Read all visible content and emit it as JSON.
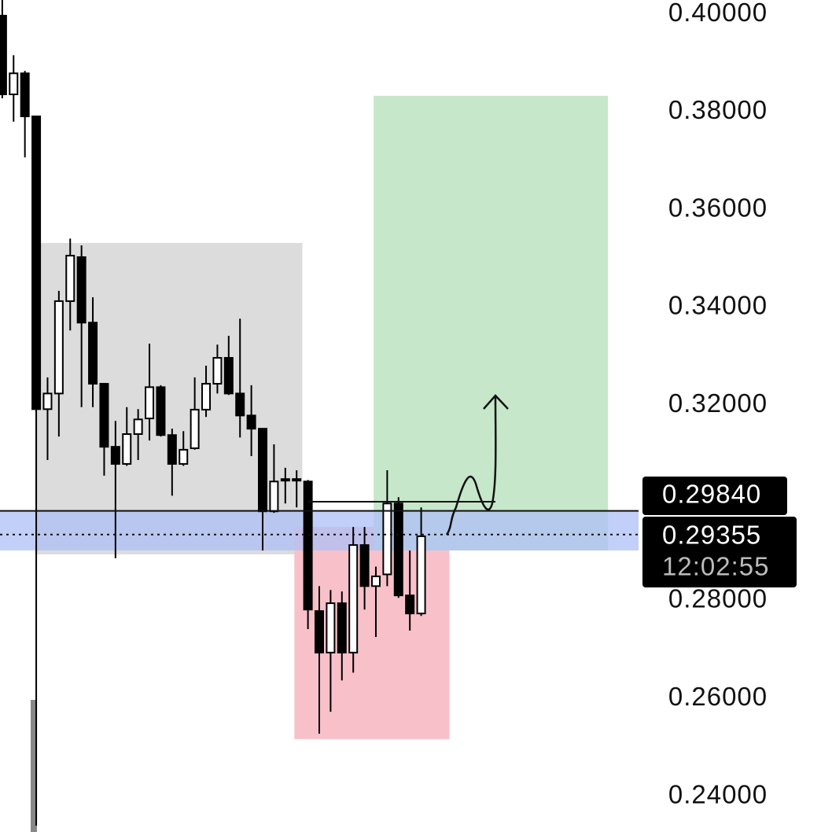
{
  "chart_data": {
    "type": "candlestick",
    "open": [
      0.3997,
      0.3836,
      0.3879,
      0.3791,
      0.3192,
      0.3224,
      0.3413,
      0.3503,
      0.3369,
      0.3244,
      0.3115,
      0.308,
      0.3141,
      0.3173,
      0.3237,
      0.3139,
      0.308,
      0.3112,
      0.3191,
      0.3244,
      0.3297,
      0.3224,
      0.3179,
      0.3152,
      0.2983,
      0.3046,
      0.3046,
      0.3044,
      0.2779,
      0.2694,
      0.2795,
      0.2694,
      0.2914,
      0.283,
      0.2854,
      0.2999,
      0.2811,
      0.2774
    ],
    "high": [
      0.4029,
      0.3916,
      0.3884,
      0.3791,
      0.3257,
      0.3434,
      0.3541,
      0.3527,
      0.3421,
      0.3244,
      0.3168,
      0.3196,
      0.3192,
      0.3326,
      0.3241,
      0.3152,
      0.3147,
      0.3257,
      0.3281,
      0.3324,
      0.3342,
      0.3377,
      0.3241,
      0.3152,
      0.312,
      0.3072,
      0.3067,
      0.3047,
      0.283,
      0.2822,
      0.2819,
      0.2951,
      0.2951,
      0.287,
      0.3067,
      0.3012,
      0.2903,
      0.2991
    ],
    "low": [
      0.3828,
      0.378,
      0.3707,
      0.234,
      0.3088,
      0.3136,
      0.3353,
      0.3196,
      0.3196,
      0.3056,
      0.2887,
      0.3076,
      0.3088,
      0.3128,
      0.3136,
      0.3015,
      0.3076,
      0.3109,
      0.3176,
      0.3224,
      0.3221,
      0.3134,
      0.3096,
      0.2903,
      0.298,
      0.2999,
      0.2991,
      0.2742,
      0.2528,
      0.2573,
      0.2637,
      0.2653,
      0.2782,
      0.2726,
      0.283,
      0.2806,
      0.2739,
      0.2769
    ],
    "close": [
      0.3836,
      0.3879,
      0.3791,
      0.3192,
      0.3224,
      0.3413,
      0.3506,
      0.3369,
      0.3244,
      0.3115,
      0.308,
      0.3141,
      0.3171,
      0.3237,
      0.3139,
      0.308,
      0.3109,
      0.3191,
      0.3244,
      0.3297,
      0.3224,
      0.3179,
      0.3152,
      0.2983,
      0.3044,
      0.3049,
      0.3049,
      0.2782,
      0.2694,
      0.2795,
      0.2694,
      0.2914,
      0.283,
      0.285,
      0.2999,
      0.2811,
      0.2774,
      0.2932
    ],
    "up_color": "#ffffff",
    "down_color": "#000000",
    "xlim": [
      -0.2,
      56.2
    ],
    "ylim": [
      0.2327,
      0.4029
    ],
    "yticks": [
      {
        "value": 0.24,
        "label": "0.24000"
      },
      {
        "value": 0.26,
        "label": "0.26000"
      },
      {
        "value": 0.28,
        "label": "0.28000"
      },
      {
        "value": 0.32,
        "label": "0.32000"
      },
      {
        "value": 0.34,
        "label": "0.34000"
      },
      {
        "value": 0.36,
        "label": "0.36000"
      },
      {
        "value": 0.38,
        "label": "0.38000"
      },
      {
        "value": 0.4,
        "label": "0.40000"
      }
    ],
    "zones": [
      {
        "x": [
          2.9,
          26.5
        ],
        "y": [
          0.2895,
          0.3532
        ],
        "color": "#dcdcdc"
      },
      {
        "x": [
          25.8,
          39.5
        ],
        "y": [
          0.2517,
          0.2951
        ],
        "color": "#f8c1c9"
      },
      {
        "x": [
          32.8,
          53.5
        ],
        "y": [
          0.2903,
          0.3833
        ],
        "color": "#c6e7c9"
      },
      {
        "x": [
          -0.2,
          56.2
        ],
        "y": [
          0.2903,
          0.2984
        ],
        "color": "#aebff5"
      }
    ],
    "price_labels": [
      {
        "value": 0.2984,
        "label": "0.29840"
      },
      {
        "value": 0.29355,
        "label": "0.29355",
        "time": "12:02:55"
      }
    ]
  }
}
